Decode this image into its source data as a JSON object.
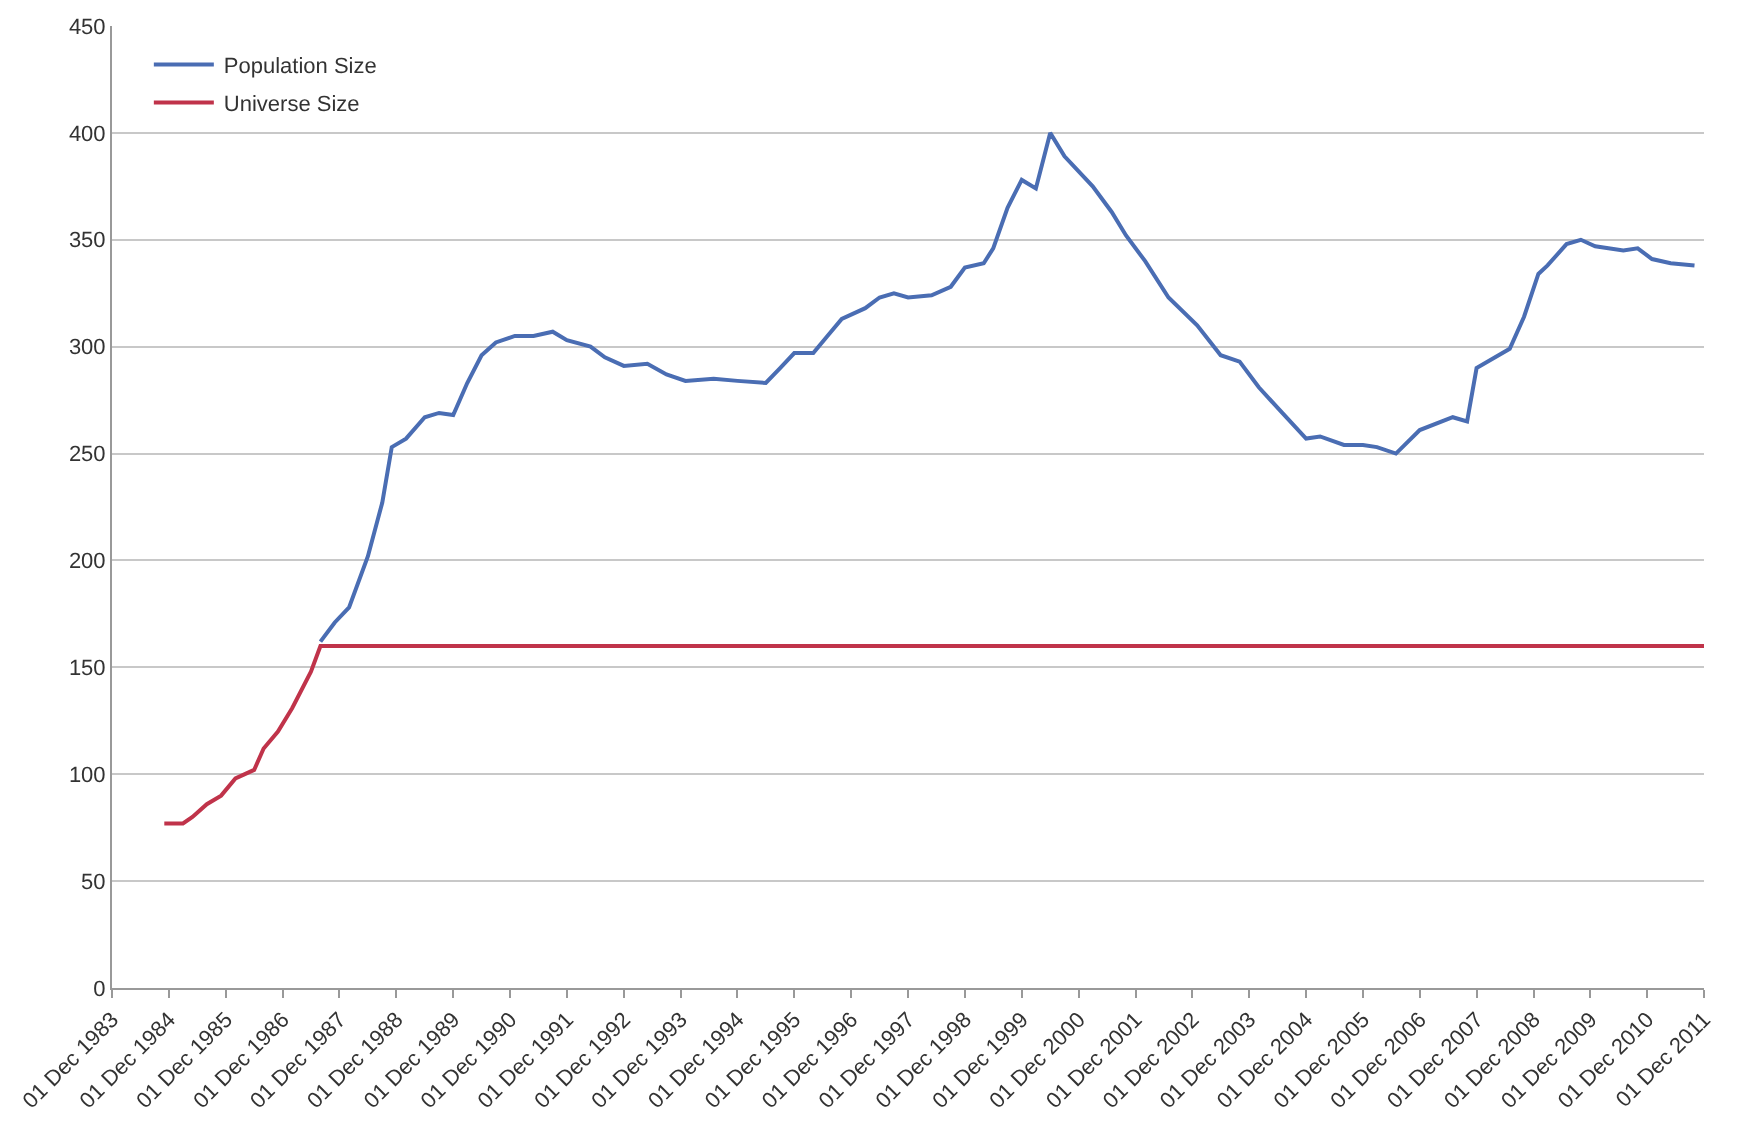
{
  "chart_data": {
    "type": "line",
    "grid": "y",
    "legend": "top left",
    "marker": "none",
    "line_style": "solid",
    "xlim": [
      "1983-12-01",
      "2011-12-01"
    ],
    "xticks": [
      {
        "value": "1983-12-01",
        "label": "01 Dec 1983"
      },
      {
        "value": "1984-12-01",
        "label": "01 Dec 1984"
      },
      {
        "value": "1985-12-01",
        "label": "01 Dec 1985"
      },
      {
        "value": "1986-12-01",
        "label": "01 Dec 1986"
      },
      {
        "value": "1987-12-01",
        "label": "01 Dec 1987"
      },
      {
        "value": "1988-12-01",
        "label": "01 Dec 1988"
      },
      {
        "value": "1989-12-01",
        "label": "01 Dec 1989"
      },
      {
        "value": "1990-12-01",
        "label": "01 Dec 1990"
      },
      {
        "value": "1991-12-01",
        "label": "01 Dec 1991"
      },
      {
        "value": "1992-12-01",
        "label": "01 Dec 1992"
      },
      {
        "value": "1993-12-01",
        "label": "01 Dec 1993"
      },
      {
        "value": "1994-12-01",
        "label": "01 Dec 1994"
      },
      {
        "value": "1995-12-01",
        "label": "01 Dec 1995"
      },
      {
        "value": "1996-12-01",
        "label": "01 Dec 1996"
      },
      {
        "value": "1997-12-01",
        "label": "01 Dec 1997"
      },
      {
        "value": "1998-12-01",
        "label": "01 Dec 1998"
      },
      {
        "value": "1999-12-01",
        "label": "01 Dec 1999"
      },
      {
        "value": "2000-12-01",
        "label": "01 Dec 2000"
      },
      {
        "value": "2001-12-01",
        "label": "01 Dec 2001"
      },
      {
        "value": "2002-12-01",
        "label": "01 Dec 2002"
      },
      {
        "value": "2003-12-01",
        "label": "01 Dec 2003"
      },
      {
        "value": "2004-12-01",
        "label": "01 Dec 2004"
      },
      {
        "value": "2005-12-01",
        "label": "01 Dec 2005"
      },
      {
        "value": "2006-12-01",
        "label": "01 Dec 2006"
      },
      {
        "value": "2007-12-01",
        "label": "01 Dec 2007"
      },
      {
        "value": "2008-12-01",
        "label": "01 Dec 2008"
      },
      {
        "value": "2009-12-01",
        "label": "01 Dec 2009"
      },
      {
        "value": "2010-12-01",
        "label": "01 Dec 2010"
      },
      {
        "value": "2011-12-01",
        "label": "01 Dec 2011"
      }
    ],
    "ylim": [
      0,
      450
    ],
    "yticks": [
      0,
      50,
      100,
      150,
      200,
      250,
      300,
      350,
      400,
      450
    ],
    "series": [
      {
        "name": "Population Size",
        "color": "#4a6db3",
        "x": [
          "1987-08",
          "1987-11",
          "1988-02",
          "1988-06",
          "1988-09",
          "1988-11",
          "1989-02",
          "1989-06",
          "1989-09",
          "1989-12",
          "1990-03",
          "1990-06",
          "1990-09",
          "1991-01",
          "1991-05",
          "1991-09",
          "1991-12",
          "1992-05",
          "1992-08",
          "1992-12",
          "1993-05",
          "1993-09",
          "1994-01",
          "1994-07",
          "1994-12",
          "1995-06",
          "1995-09",
          "1995-12",
          "1996-04",
          "1996-07",
          "1996-10",
          "1997-03",
          "1997-06",
          "1997-09",
          "1997-12",
          "1998-05",
          "1998-09",
          "1998-12",
          "1999-04",
          "1999-06",
          "1999-09",
          "1999-12",
          "2000-03",
          "2000-06",
          "2000-09",
          "2001-03",
          "2001-07",
          "2001-10",
          "2002-02",
          "2002-07",
          "2003-01",
          "2003-06",
          "2003-10",
          "2004-02",
          "2004-07",
          "2004-12",
          "2005-03",
          "2005-08",
          "2005-12",
          "2006-03",
          "2006-07",
          "2006-12",
          "2007-07",
          "2007-10",
          "2007-12",
          "2008-07",
          "2008-10",
          "2009-01",
          "2009-03",
          "2009-07",
          "2009-10",
          "2010-01",
          "2010-07",
          "2010-10",
          "2011-01",
          "2011-05",
          "2011-10"
        ],
        "values": [
          162,
          171,
          178,
          202,
          227,
          253,
          257,
          267,
          269,
          268,
          283,
          296,
          302,
          305,
          305,
          307,
          303,
          300,
          295,
          291,
          292,
          287,
          284,
          285,
          284,
          283,
          290,
          297,
          297,
          305,
          313,
          318,
          323,
          325,
          323,
          324,
          328,
          337,
          339,
          346,
          365,
          378,
          374,
          400,
          389,
          375,
          363,
          352,
          340,
          323,
          310,
          296,
          293,
          281,
          269,
          257,
          258,
          254,
          254,
          253,
          250,
          261,
          267,
          265,
          290,
          299,
          314,
          334,
          338,
          348,
          350,
          347,
          345,
          346,
          341,
          339,
          338
        ]
      },
      {
        "name": "Universe Size",
        "color": "#c0334a",
        "x": [
          "1984-11",
          "1985-03",
          "1985-05",
          "1985-08",
          "1985-11",
          "1986-02",
          "1986-06",
          "1986-08",
          "1986-11",
          "1987-02",
          "1987-06",
          "1987-08",
          "2011-12-01"
        ],
        "values": [
          77,
          77,
          80,
          86,
          90,
          98,
          102,
          112,
          120,
          131,
          148,
          160,
          160
        ]
      }
    ]
  }
}
